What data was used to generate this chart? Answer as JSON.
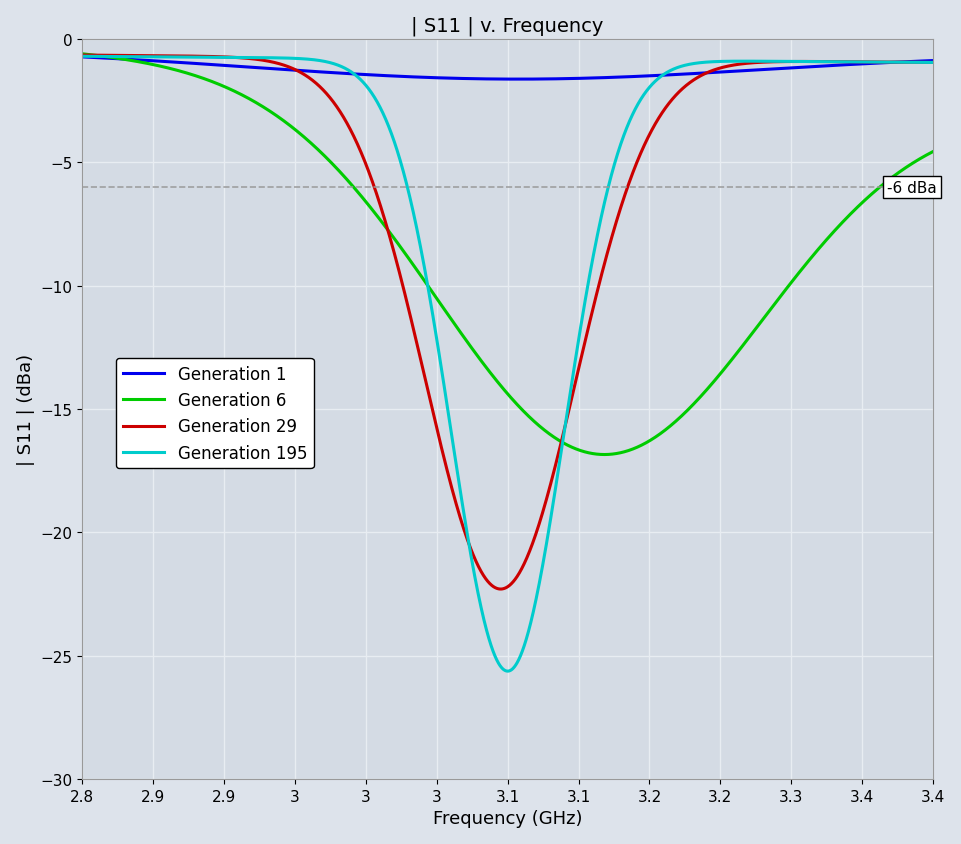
{
  "title": "| S11 | v. Frequency",
  "xlabel": "Frequency (GHz)",
  "ylabel": "| S11 | (dBa)",
  "xlim": [
    2.8,
    3.4
  ],
  "ylim": [
    -30,
    0
  ],
  "yticks": [
    0,
    -5,
    -10,
    -15,
    -20,
    -25,
    -30
  ],
  "xticks": [
    2.8,
    2.85,
    2.9,
    2.95,
    3.0,
    3.05,
    3.1,
    3.15,
    3.2,
    3.25,
    3.3,
    3.35,
    3.4
  ],
  "ref_line_y": -6,
  "ref_line_label": "-6 dBa",
  "background_color": "#dde3eb",
  "plot_bg_color": "#d4dbe4",
  "grid_color": "#e8edf2",
  "lines": [
    {
      "label": "Generation 1",
      "color": "#0000ee",
      "linewidth": 2.2
    },
    {
      "label": "Generation 6",
      "color": "#00cc00",
      "linewidth": 2.2
    },
    {
      "label": "Generation 29",
      "color": "#cc0000",
      "linewidth": 2.2
    },
    {
      "label": "Generation 195",
      "color": "#00cccc",
      "linewidth": 2.2
    }
  ]
}
